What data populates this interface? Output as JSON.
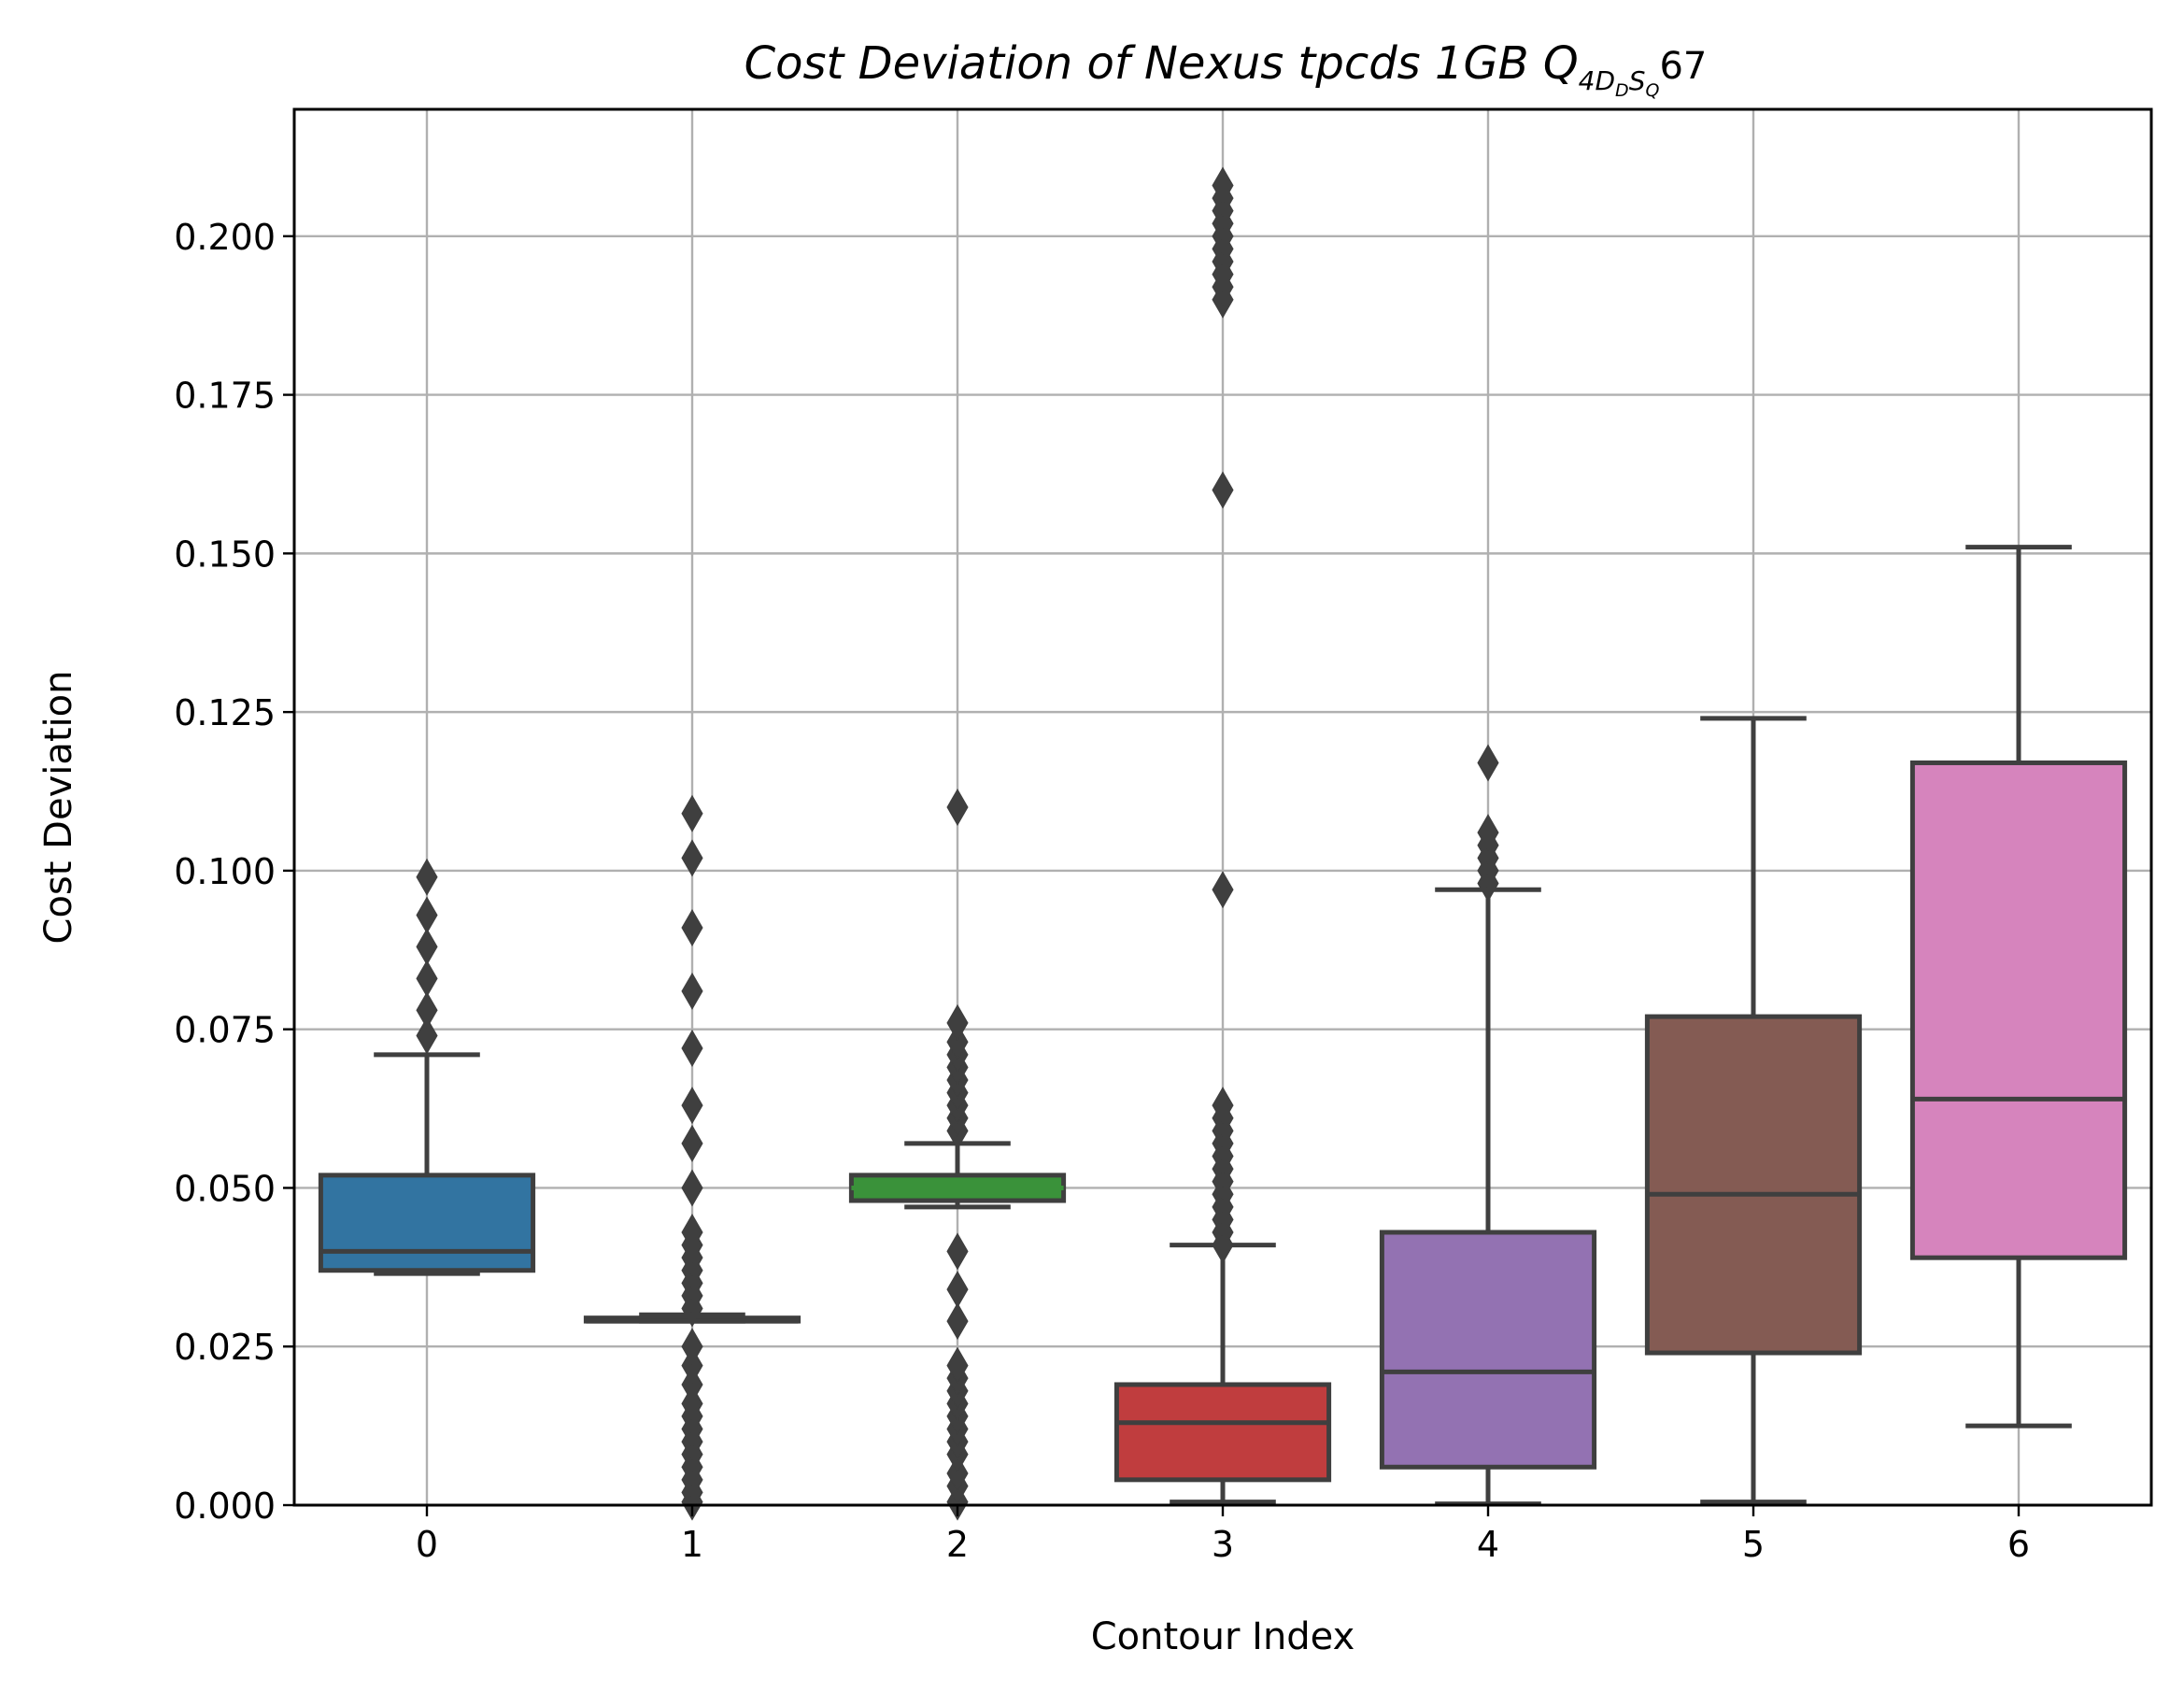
{
  "chart_data": {
    "type": "box",
    "title": {
      "main": "Cost Deviation of Nexus tpcds  1GB  Q",
      "sub_4": "4",
      "sub_D": "D",
      "sub_D2": "D",
      "sub_S": "S",
      "sub_Q": "Q",
      "suffix": "67"
    },
    "xlabel": "Contour Index",
    "ylabel": "Cost Deviation",
    "ylim": [
      0,
      0.22
    ],
    "yticks": [
      "0.000",
      "0.025",
      "0.050",
      "0.075",
      "0.100",
      "0.125",
      "0.150",
      "0.175",
      "0.200"
    ],
    "grid": true,
    "categories": [
      "0",
      "1",
      "2",
      "3",
      "4",
      "5",
      "6"
    ],
    "colors": [
      "#3274a1",
      "#3a923a",
      "#e1812c",
      "#c03d3e",
      "#9372b2",
      "#845b53",
      "#d684bd"
    ],
    "line_color": "#3f3f3f",
    "boxes": [
      {
        "category": "0",
        "color": "#3274a1",
        "whisker_low": 0.0365,
        "q1": 0.037,
        "median": 0.04,
        "q3": 0.052,
        "whisker_high": 0.071,
        "outliers": [
          0.074,
          0.078,
          0.083,
          0.088,
          0.093,
          0.099
        ]
      },
      {
        "category": "1",
        "color": "#3274a1",
        "whisker_low": 0.029,
        "q1": 0.029,
        "median": 0.029,
        "q3": 0.0295,
        "whisker_high": 0.03,
        "outliers": [
          0.0005,
          0.002,
          0.004,
          0.006,
          0.008,
          0.01,
          0.012,
          0.014,
          0.016,
          0.019,
          0.022,
          0.025,
          0.031,
          0.033,
          0.035,
          0.037,
          0.039,
          0.041,
          0.043,
          0.05,
          0.057,
          0.063,
          0.072,
          0.081,
          0.091,
          0.102,
          0.109
        ]
      },
      {
        "category": "2",
        "color": "#3a923a",
        "whisker_low": 0.047,
        "q1": 0.048,
        "median": 0.05,
        "q3": 0.052,
        "whisker_high": 0.057,
        "outliers": [
          0.0005,
          0.003,
          0.005,
          0.008,
          0.01,
          0.012,
          0.014,
          0.016,
          0.018,
          0.02,
          0.022,
          0.029,
          0.034,
          0.04,
          0.059,
          0.061,
          0.063,
          0.065,
          0.067,
          0.069,
          0.071,
          0.073,
          0.076,
          0.11
        ]
      },
      {
        "category": "3",
        "color": "#c03d3e",
        "whisker_low": 0.0005,
        "q1": 0.004,
        "median": 0.013,
        "q3": 0.019,
        "whisker_high": 0.041,
        "outliers": [
          0.041,
          0.043,
          0.045,
          0.047,
          0.049,
          0.051,
          0.053,
          0.055,
          0.057,
          0.059,
          0.061,
          0.063,
          0.097,
          0.16,
          0.19,
          0.192,
          0.194,
          0.196,
          0.198,
          0.2,
          0.202,
          0.204,
          0.206,
          0.208
        ]
      },
      {
        "category": "4",
        "color": "#9372b2",
        "whisker_low": 0.0002,
        "q1": 0.006,
        "median": 0.021,
        "q3": 0.043,
        "whisker_high": 0.097,
        "outliers": [
          0.098,
          0.1,
          0.102,
          0.104,
          0.106,
          0.117
        ]
      },
      {
        "category": "5",
        "color": "#845b53",
        "whisker_low": 0.0005,
        "q1": 0.024,
        "median": 0.049,
        "q3": 0.077,
        "whisker_high": 0.124,
        "outliers": []
      },
      {
        "category": "6",
        "color": "#d684bd",
        "whisker_low": 0.0125,
        "q1": 0.039,
        "median": 0.064,
        "q3": 0.117,
        "whisker_high": 0.151,
        "outliers": []
      }
    ]
  }
}
